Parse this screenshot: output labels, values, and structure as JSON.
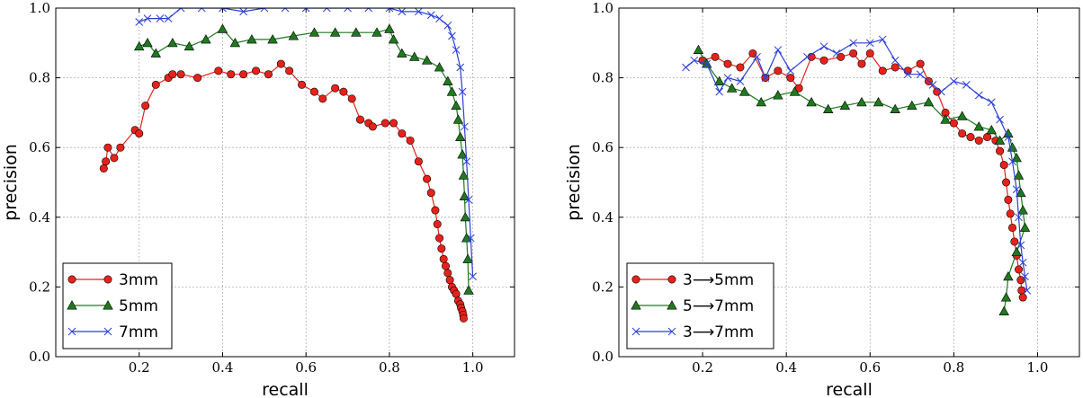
{
  "chart_data": [
    {
      "type": "line",
      "title": "",
      "xlabel": "recall",
      "ylabel": "precision",
      "xlim": [
        0.0,
        1.1
      ],
      "ylim": [
        0.0,
        1.0
      ],
      "xticks": [
        "0.2",
        "0.4",
        "0.6",
        "0.8",
        "1.0"
      ],
      "yticks": [
        "0.0",
        "0.2",
        "0.4",
        "0.6",
        "0.8",
        "1.0"
      ],
      "grid": true,
      "legend_position": "bottom-left",
      "series": [
        {
          "name": "3mm",
          "color": "#e8221b",
          "marker": "circle",
          "x": [
            0.115,
            0.12,
            0.125,
            0.14,
            0.155,
            0.19,
            0.2,
            0.215,
            0.24,
            0.27,
            0.28,
            0.3,
            0.34,
            0.39,
            0.42,
            0.45,
            0.48,
            0.51,
            0.54,
            0.56,
            0.59,
            0.62,
            0.64,
            0.67,
            0.69,
            0.71,
            0.73,
            0.75,
            0.76,
            0.79,
            0.81,
            0.83,
            0.85,
            0.87,
            0.89,
            0.9,
            0.91,
            0.915,
            0.92,
            0.925,
            0.93,
            0.935,
            0.94,
            0.945,
            0.95,
            0.955,
            0.96,
            0.965,
            0.97,
            0.972,
            0.975,
            0.977,
            0.978
          ],
          "y": [
            0.54,
            0.56,
            0.6,
            0.57,
            0.6,
            0.65,
            0.64,
            0.72,
            0.78,
            0.8,
            0.81,
            0.81,
            0.8,
            0.82,
            0.81,
            0.81,
            0.82,
            0.81,
            0.84,
            0.82,
            0.78,
            0.76,
            0.74,
            0.77,
            0.76,
            0.74,
            0.68,
            0.67,
            0.66,
            0.67,
            0.67,
            0.64,
            0.62,
            0.56,
            0.51,
            0.47,
            0.42,
            0.38,
            0.34,
            0.31,
            0.28,
            0.26,
            0.24,
            0.22,
            0.2,
            0.19,
            0.18,
            0.16,
            0.15,
            0.14,
            0.13,
            0.12,
            0.11
          ]
        },
        {
          "name": "5mm",
          "color": "#1f7a1f",
          "marker": "triangle",
          "x": [
            0.2,
            0.22,
            0.24,
            0.28,
            0.32,
            0.36,
            0.4,
            0.43,
            0.47,
            0.52,
            0.57,
            0.62,
            0.67,
            0.72,
            0.77,
            0.8,
            0.81,
            0.83,
            0.86,
            0.89,
            0.92,
            0.94,
            0.95,
            0.96,
            0.965,
            0.97,
            0.975,
            0.978,
            0.98,
            0.982,
            0.985,
            0.988,
            0.99
          ],
          "y": [
            0.89,
            0.9,
            0.87,
            0.9,
            0.89,
            0.91,
            0.94,
            0.9,
            0.91,
            0.91,
            0.92,
            0.93,
            0.93,
            0.93,
            0.93,
            0.94,
            0.91,
            0.87,
            0.86,
            0.85,
            0.83,
            0.79,
            0.76,
            0.72,
            0.68,
            0.63,
            0.58,
            0.52,
            0.46,
            0.4,
            0.34,
            0.28,
            0.19
          ]
        },
        {
          "name": "7mm",
          "color": "#2a3fd6",
          "marker": "x",
          "x": [
            0.2,
            0.22,
            0.25,
            0.27,
            0.3,
            0.35,
            0.4,
            0.45,
            0.5,
            0.55,
            0.6,
            0.65,
            0.7,
            0.75,
            0.8,
            0.83,
            0.87,
            0.9,
            0.92,
            0.94,
            0.95,
            0.96,
            0.97,
            0.975,
            0.98,
            0.985,
            0.99,
            0.995,
            1.0
          ],
          "y": [
            0.96,
            0.97,
            0.97,
            0.97,
            1.0,
            1.0,
            1.0,
            0.99,
            1.0,
            1.0,
            1.0,
            1.0,
            1.0,
            1.0,
            1.0,
            0.99,
            0.99,
            0.98,
            0.97,
            0.95,
            0.92,
            0.88,
            0.83,
            0.76,
            0.66,
            0.56,
            0.45,
            0.34,
            0.23
          ]
        }
      ]
    },
    {
      "type": "line",
      "title": "",
      "xlabel": "recall",
      "ylabel": "precision",
      "xlim": [
        0.0,
        1.1
      ],
      "ylim": [
        0.0,
        1.0
      ],
      "xticks": [
        "0.2",
        "0.4",
        "0.6",
        "0.8",
        "1.0"
      ],
      "yticks": [
        "0.0",
        "0.2",
        "0.4",
        "0.6",
        "0.8",
        "1.0"
      ],
      "grid": true,
      "legend_position": "bottom-left",
      "series": [
        {
          "name": "3⟶5mm",
          "color": "#e8221b",
          "marker": "circle",
          "x": [
            0.2,
            0.23,
            0.26,
            0.29,
            0.32,
            0.35,
            0.38,
            0.41,
            0.43,
            0.46,
            0.49,
            0.53,
            0.56,
            0.58,
            0.6,
            0.63,
            0.66,
            0.69,
            0.72,
            0.74,
            0.76,
            0.78,
            0.8,
            0.82,
            0.84,
            0.86,
            0.88,
            0.9,
            0.91,
            0.92,
            0.925,
            0.93,
            0.935,
            0.94,
            0.945,
            0.95,
            0.955,
            0.96,
            0.962,
            0.965
          ],
          "y": [
            0.85,
            0.86,
            0.84,
            0.83,
            0.87,
            0.8,
            0.82,
            0.8,
            0.77,
            0.86,
            0.85,
            0.86,
            0.87,
            0.84,
            0.87,
            0.82,
            0.83,
            0.82,
            0.84,
            0.79,
            0.76,
            0.7,
            0.67,
            0.64,
            0.63,
            0.62,
            0.63,
            0.62,
            0.59,
            0.55,
            0.5,
            0.45,
            0.41,
            0.37,
            0.33,
            0.29,
            0.25,
            0.22,
            0.19,
            0.17
          ]
        },
        {
          "name": "5⟶7mm",
          "color": "#1f7a1f",
          "marker": "triangle",
          "x": [
            0.19,
            0.21,
            0.24,
            0.27,
            0.3,
            0.34,
            0.38,
            0.42,
            0.46,
            0.5,
            0.54,
            0.58,
            0.62,
            0.66,
            0.7,
            0.74,
            0.78,
            0.82,
            0.86,
            0.89,
            0.91,
            0.93,
            0.94,
            0.95,
            0.955,
            0.96,
            0.965,
            0.97,
            0.95,
            0.93,
            0.925,
            0.92
          ],
          "y": [
            0.88,
            0.84,
            0.79,
            0.77,
            0.76,
            0.73,
            0.75,
            0.76,
            0.73,
            0.71,
            0.72,
            0.73,
            0.73,
            0.71,
            0.72,
            0.73,
            0.68,
            0.69,
            0.66,
            0.65,
            0.62,
            0.64,
            0.6,
            0.57,
            0.52,
            0.47,
            0.42,
            0.37,
            0.3,
            0.23,
            0.17,
            0.13
          ]
        },
        {
          "name": "3⟶7mm",
          "color": "#2a3fd6",
          "marker": "x",
          "x": [
            0.16,
            0.18,
            0.21,
            0.24,
            0.26,
            0.29,
            0.33,
            0.35,
            0.38,
            0.41,
            0.45,
            0.49,
            0.52,
            0.56,
            0.6,
            0.63,
            0.66,
            0.69,
            0.72,
            0.75,
            0.77,
            0.8,
            0.83,
            0.86,
            0.89,
            0.91,
            0.93,
            0.94,
            0.95,
            0.955,
            0.96,
            0.965,
            0.97,
            0.975
          ],
          "y": [
            0.83,
            0.85,
            0.84,
            0.76,
            0.8,
            0.79,
            0.86,
            0.8,
            0.88,
            0.82,
            0.86,
            0.89,
            0.87,
            0.9,
            0.9,
            0.91,
            0.85,
            0.81,
            0.81,
            0.78,
            0.76,
            0.79,
            0.78,
            0.75,
            0.73,
            0.68,
            0.63,
            0.56,
            0.48,
            0.4,
            0.32,
            0.27,
            0.23,
            0.19
          ]
        }
      ]
    }
  ]
}
